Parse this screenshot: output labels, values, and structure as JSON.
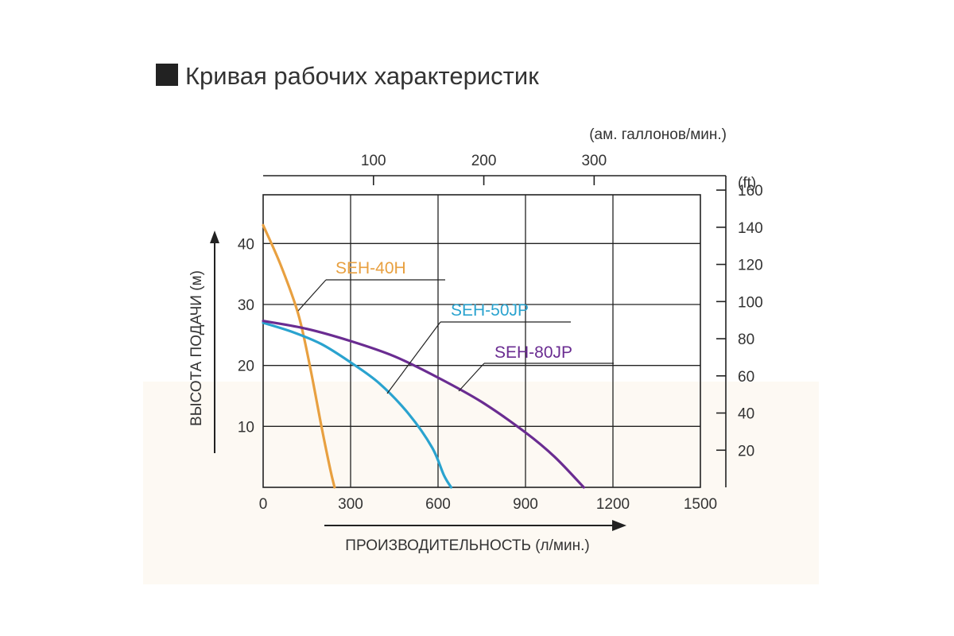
{
  "title": "Кривая рабочих характеристик",
  "chart_data": {
    "type": "line",
    "title": "Кривая рабочих характеристик",
    "xlabel": "ПРОИЗВОДИТЕЛЬНОСТЬ (л/мин.)",
    "ylabel": "ВЫСОТА ПОДАЧИ (м)",
    "x2label": "(ам. галлонов/мин.)",
    "y2label": "(ft)",
    "xlim": [
      0,
      1500
    ],
    "ylim": [
      0,
      48
    ],
    "x_ticks": [
      "0",
      "300",
      "600",
      "900",
      "1200",
      "1500"
    ],
    "y_ticks": [
      "10",
      "20",
      "30",
      "40"
    ],
    "x2_ticks": [
      "100",
      "200",
      "300"
    ],
    "y2_ticks": [
      "20",
      "40",
      "60",
      "80",
      "100",
      "120",
      "140",
      "160"
    ],
    "grid": true,
    "series": [
      {
        "name": "SEH-40H",
        "color": "#e8a040",
        "x": [
          0,
          60,
          120,
          160,
          200,
          230,
          245
        ],
        "y": [
          43,
          36.5,
          28.5,
          20,
          10,
          3,
          0
        ]
      },
      {
        "name": "SEH-50JP",
        "color": "#2aa3cf",
        "x": [
          0,
          100,
          200,
          300,
          400,
          500,
          580,
          620,
          645
        ],
        "y": [
          27,
          25.5,
          23.5,
          20.5,
          17,
          12,
          6.5,
          2,
          0
        ]
      },
      {
        "name": "SEH-80JP",
        "color": "#6a2c91",
        "x": [
          0,
          150,
          300,
          450,
          600,
          750,
          900,
          1000,
          1100
        ],
        "y": [
          27.3,
          26,
          24,
          21.5,
          18,
          14,
          9,
          5,
          0
        ]
      }
    ]
  }
}
